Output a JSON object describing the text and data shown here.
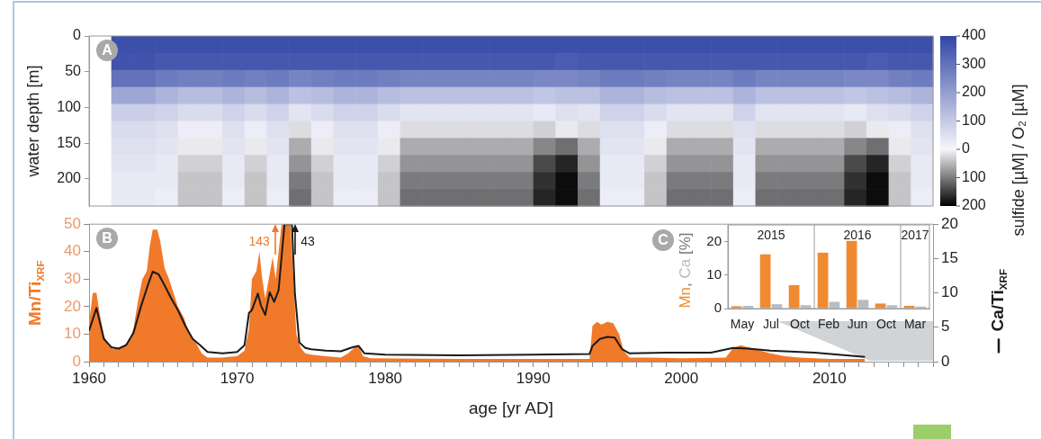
{
  "chart_data": [
    {
      "type": "heatmap",
      "ylabel": "water depth [m]",
      "clabel": "sulfide [µM] / O₂ [µM]",
      "annotations": [
        "A"
      ],
      "tick_labels": "y",
      "x": [
        1962.25,
        1963.75,
        1965.25,
        1966.75,
        1968.25,
        1969.75,
        1971.25,
        1972.75,
        1974.25,
        1975.75,
        1977.25,
        1978.75,
        1980.25,
        1981.75,
        1983.25,
        1984.75,
        1986.25,
        1987.75,
        1989.25,
        1990.75,
        1992.25,
        1993.75,
        1995.25,
        1996.75,
        1998.25,
        1999.75,
        2001.25,
        2002.75,
        2004.25,
        2005.75,
        2007.25,
        2008.75,
        2010.25,
        2011.75,
        2013.25,
        2014.75,
        2016.25
      ],
      "xlim": [
        1960,
        2017
      ],
      "ylim": [
        238,
        0
      ],
      "yticks": [
        0,
        50,
        100,
        150,
        200
      ],
      "clim": [
        -200,
        400
      ],
      "cticks": [
        {
          "value": -200,
          "label": "200"
        },
        {
          "value": -100,
          "label": "100"
        },
        {
          "value": 0,
          "label": "0"
        },
        100,
        200,
        300,
        400
      ],
      "cells": [
        [
          380,
          380,
          380,
          380,
          380,
          380,
          380,
          380,
          380,
          380,
          380,
          380,
          380,
          380,
          380,
          380,
          380,
          380,
          380,
          380,
          380,
          380,
          380,
          380,
          380,
          380,
          380,
          380,
          380,
          380,
          380,
          380,
          380,
          380,
          380,
          380,
          380
        ],
        [
          370,
          370,
          360,
          360,
          360,
          360,
          360,
          360,
          360,
          360,
          360,
          360,
          360,
          360,
          360,
          360,
          360,
          360,
          360,
          360,
          350,
          360,
          360,
          360,
          360,
          360,
          360,
          360,
          360,
          360,
          360,
          360,
          360,
          360,
          350,
          360,
          360
        ],
        [
          300,
          300,
          280,
          270,
          270,
          280,
          270,
          280,
          260,
          270,
          280,
          280,
          270,
          260,
          260,
          260,
          260,
          260,
          260,
          250,
          250,
          260,
          280,
          280,
          270,
          260,
          260,
          260,
          280,
          260,
          260,
          260,
          260,
          250,
          250,
          270,
          280
        ],
        [
          180,
          180,
          150,
          130,
          130,
          150,
          130,
          150,
          120,
          130,
          150,
          150,
          130,
          120,
          120,
          120,
          120,
          120,
          120,
          110,
          120,
          120,
          150,
          150,
          130,
          120,
          120,
          120,
          150,
          120,
          120,
          120,
          120,
          110,
          120,
          130,
          150
        ],
        [
          90,
          90,
          80,
          60,
          60,
          80,
          60,
          80,
          40,
          60,
          80,
          80,
          60,
          40,
          40,
          40,
          40,
          40,
          40,
          30,
          50,
          40,
          80,
          80,
          60,
          40,
          40,
          40,
          80,
          40,
          40,
          40,
          40,
          30,
          50,
          60,
          80
        ],
        [
          60,
          60,
          50,
          20,
          20,
          50,
          20,
          50,
          -20,
          20,
          50,
          50,
          20,
          -20,
          -20,
          -20,
          -20,
          -20,
          -20,
          -30,
          -10,
          -20,
          50,
          50,
          20,
          -20,
          -20,
          -20,
          50,
          -20,
          -20,
          -20,
          -20,
          -30,
          -10,
          20,
          50
        ],
        [
          50,
          50,
          40,
          -10,
          -10,
          40,
          -10,
          40,
          -60,
          -10,
          40,
          40,
          -10,
          -60,
          -60,
          -60,
          -60,
          -60,
          -60,
          -90,
          -110,
          -60,
          40,
          40,
          -10,
          -60,
          -60,
          -60,
          40,
          -60,
          -60,
          -60,
          -60,
          -90,
          -110,
          -10,
          40
        ],
        [
          40,
          40,
          30,
          -30,
          -30,
          30,
          -30,
          30,
          -80,
          -30,
          30,
          30,
          -30,
          -80,
          -80,
          -80,
          -80,
          -80,
          -80,
          -140,
          -170,
          -80,
          30,
          30,
          -30,
          -80,
          -80,
          -80,
          30,
          -80,
          -80,
          -80,
          -80,
          -140,
          -170,
          -30,
          30
        ],
        [
          30,
          30,
          30,
          -40,
          -40,
          30,
          -40,
          30,
          -100,
          -40,
          30,
          30,
          -40,
          -100,
          -100,
          -100,
          -100,
          -100,
          -100,
          -160,
          -190,
          -100,
          30,
          30,
          -40,
          -100,
          -100,
          -100,
          30,
          -100,
          -100,
          -100,
          -100,
          -160,
          -190,
          -40,
          30
        ],
        [
          30,
          30,
          20,
          -40,
          -40,
          20,
          -40,
          20,
          -110,
          -40,
          20,
          20,
          -40,
          -110,
          -110,
          -110,
          -110,
          -110,
          -110,
          -170,
          -190,
          -110,
          20,
          20,
          -40,
          -110,
          -110,
          -110,
          20,
          -110,
          -110,
          -110,
          -110,
          -170,
          -190,
          -40,
          20
        ]
      ]
    },
    {
      "type": "area",
      "xlabel": "age [yr AD]",
      "ylabel": "Mn/Ti$_{XRF}$",
      "y2label": "Ca/Ti$_{XRF}$",
      "annotations": [
        "B",
        "143",
        "43"
      ],
      "xlim": [
        1960,
        2017
      ],
      "xticks": [
        1960,
        {
          "value": 1961,
          "label": null
        },
        {
          "value": 1962,
          "label": null
        },
        {
          "value": 1963,
          "label": null
        },
        {
          "value": 1964,
          "label": null
        },
        {
          "value": 1965,
          "label": null
        },
        {
          "value": 1966,
          "label": null
        },
        {
          "value": 1967,
          "label": null
        },
        {
          "value": 1968,
          "label": null
        },
        {
          "value": 1969,
          "label": null
        },
        1970,
        {
          "value": 1971,
          "label": null
        },
        {
          "value": 1972,
          "label": null
        },
        {
          "value": 1973,
          "label": null
        },
        {
          "value": 1974,
          "label": null
        },
        {
          "value": 1975,
          "label": null
        },
        {
          "value": 1976,
          "label": null
        },
        {
          "value": 1977,
          "label": null
        },
        {
          "value": 1978,
          "label": null
        },
        {
          "value": 1979,
          "label": null
        },
        1980,
        {
          "value": 1981,
          "label": null
        },
        {
          "value": 1982,
          "label": null
        },
        {
          "value": 1983,
          "label": null
        },
        {
          "value": 1984,
          "label": null
        },
        {
          "value": 1985,
          "label": null
        },
        {
          "value": 1986,
          "label": null
        },
        {
          "value": 1987,
          "label": null
        },
        {
          "value": 1988,
          "label": null
        },
        {
          "value": 1989,
          "label": null
        },
        1990,
        {
          "value": 1991,
          "label": null
        },
        {
          "value": 1992,
          "label": null
        },
        {
          "value": 1993,
          "label": null
        },
        {
          "value": 1994,
          "label": null
        },
        {
          "value": 1995,
          "label": null
        },
        {
          "value": 1996,
          "label": null
        },
        {
          "value": 1997,
          "label": null
        },
        {
          "value": 1998,
          "label": null
        },
        {
          "value": 1999,
          "label": null
        },
        2000,
        {
          "value": 2001,
          "label": null
        },
        {
          "value": 2002,
          "label": null
        },
        {
          "value": 2003,
          "label": null
        },
        {
          "value": 2004,
          "label": null
        },
        {
          "value": 2005,
          "label": null
        },
        {
          "value": 2006,
          "label": null
        },
        {
          "value": 2007,
          "label": null
        },
        {
          "value": 2008,
          "label": null
        },
        {
          "value": 2009,
          "label": null
        },
        2010,
        {
          "value": 2011,
          "label": null
        },
        {
          "value": 2012,
          "label": null
        },
        {
          "value": 2013,
          "label": null
        },
        {
          "value": 2014,
          "label": null
        },
        {
          "value": 2015,
          "label": null
        },
        {
          "value": 2016,
          "label": null
        },
        {
          "value": 2017,
          "label": null
        }
      ],
      "ylim": [
        0,
        50
      ],
      "yticks": [
        0,
        10,
        20,
        30,
        40,
        50
      ],
      "y2lim": [
        0,
        20
      ],
      "y2ticks": [
        0,
        5,
        10,
        15,
        20
      ],
      "series": [
        {
          "color": "#f07a2a",
          "x": [
            1960,
            1960.25,
            1960.5,
            1960.7,
            1961,
            1961.3,
            1961.6,
            1962,
            1962.5,
            1962.8,
            1963,
            1963.3,
            1963.6,
            1963.9,
            1964.1,
            1964.3,
            1964.6,
            1964.8,
            1965.1,
            1965.4,
            1965.7,
            1966,
            1966.4,
            1966.8,
            1967.2,
            1967.6,
            1968,
            1969,
            1970,
            1970.5,
            1970.8,
            1971,
            1971.3,
            1971.5,
            1971.7,
            1971.9,
            1972.2,
            1972.4,
            1972.6,
            1972.8,
            1973,
            1973.6,
            1973.8,
            1974,
            1974.3,
            1974.6,
            1975,
            1976,
            1977,
            1977.5,
            1978,
            1978.2,
            1978.5,
            1979,
            1985,
            1990,
            1993.5,
            1993.8,
            1994,
            1994.3,
            1994.6,
            1995,
            1995.4,
            1995.8,
            1996.1,
            1996.5,
            1998,
            2000,
            2003,
            2003.5,
            2004,
            2005,
            2006,
            2007,
            2008,
            2010,
            2012.4
          ],
          "values": [
            14,
            25,
            25,
            18,
            9.5,
            6,
            4.7,
            5,
            6.5,
            9,
            12,
            22,
            30,
            33,
            42,
            48,
            48,
            44,
            34,
            30,
            25,
            20,
            16,
            10,
            7,
            3,
            1.5,
            1.5,
            2,
            4,
            12,
            30,
            33,
            40,
            30,
            23,
            32,
            38,
            30,
            40,
            50,
            50,
            30,
            10,
            5,
            3,
            2.5,
            2,
            1.5,
            3,
            5.5,
            6,
            2,
            1.2,
            1,
            1,
            1,
            1,
            13,
            14.5,
            13.5,
            14.5,
            14,
            10,
            4,
            1.5,
            1.5,
            1.2,
            1.5,
            5,
            6,
            4.5,
            3,
            2,
            1.5,
            1,
            1
          ]
        },
        {
          "type": "line",
          "axis": "y2",
          "color": "#1a1a1a",
          "x": [
            1960,
            1960.5,
            1961,
            1961.5,
            1962,
            1962.5,
            1963,
            1963.5,
            1964,
            1964.3,
            1964.7,
            1965.1,
            1965.5,
            1966,
            1966.5,
            1967,
            1967.5,
            1968,
            1969,
            1970,
            1970.5,
            1970.8,
            1971,
            1971.4,
            1971.6,
            1971.9,
            1972.2,
            1972.5,
            1972.8,
            1973.2,
            1973.7,
            1973.9,
            1974.2,
            1974.6,
            1975,
            1976,
            1977,
            1977.8,
            1978.2,
            1978.6,
            1980,
            1985,
            1990,
            1993.8,
            1994,
            1994.5,
            1995,
            1995.5,
            1996,
            1996.5,
            1999,
            2002,
            2003.5,
            2004.5,
            2006,
            2009,
            2012.4
          ],
          "values": [
            4.5,
            7.8,
            3.3,
            2.1,
            1.9,
            2.4,
            4.2,
            8,
            11.3,
            13.1,
            12.7,
            11.1,
            9.4,
            7.5,
            5.2,
            3.3,
            2.4,
            1.4,
            1.2,
            1.4,
            2.4,
            7.1,
            7.5,
            9.9,
            8.2,
            6.8,
            10.1,
            8.7,
            10.4,
            20,
            20,
            10,
            2.8,
            2,
            1.8,
            1.6,
            1.5,
            2.1,
            2.3,
            1.2,
            1,
            0.9,
            1,
            1.1,
            2.3,
            3.3,
            3.6,
            3.5,
            1.8,
            1.2,
            1.3,
            1.3,
            2,
            1.9,
            1.6,
            1.3,
            0.7
          ]
        }
      ]
    },
    {
      "type": "bar",
      "ylabel": "Mn, Ca [%]",
      "annotations": [
        "C",
        "2015",
        "2016",
        "2017"
      ],
      "categories": [
        "May",
        "Jul",
        "Oct",
        "Feb",
        "Jun",
        "Oct",
        "Mar"
      ],
      "ylim": [
        0,
        25
      ],
      "yticks": [
        0,
        10,
        20
      ],
      "series": [
        {
          "color": "#f08a30",
          "values": [
            0.7,
            16.2,
            7,
            16.7,
            20.2,
            1.5,
            0.8
          ]
        },
        {
          "color": "#b4bcc4",
          "values": [
            0.8,
            1.3,
            1,
            2,
            2.6,
            1,
            0.6
          ]
        }
      ]
    }
  ]
}
